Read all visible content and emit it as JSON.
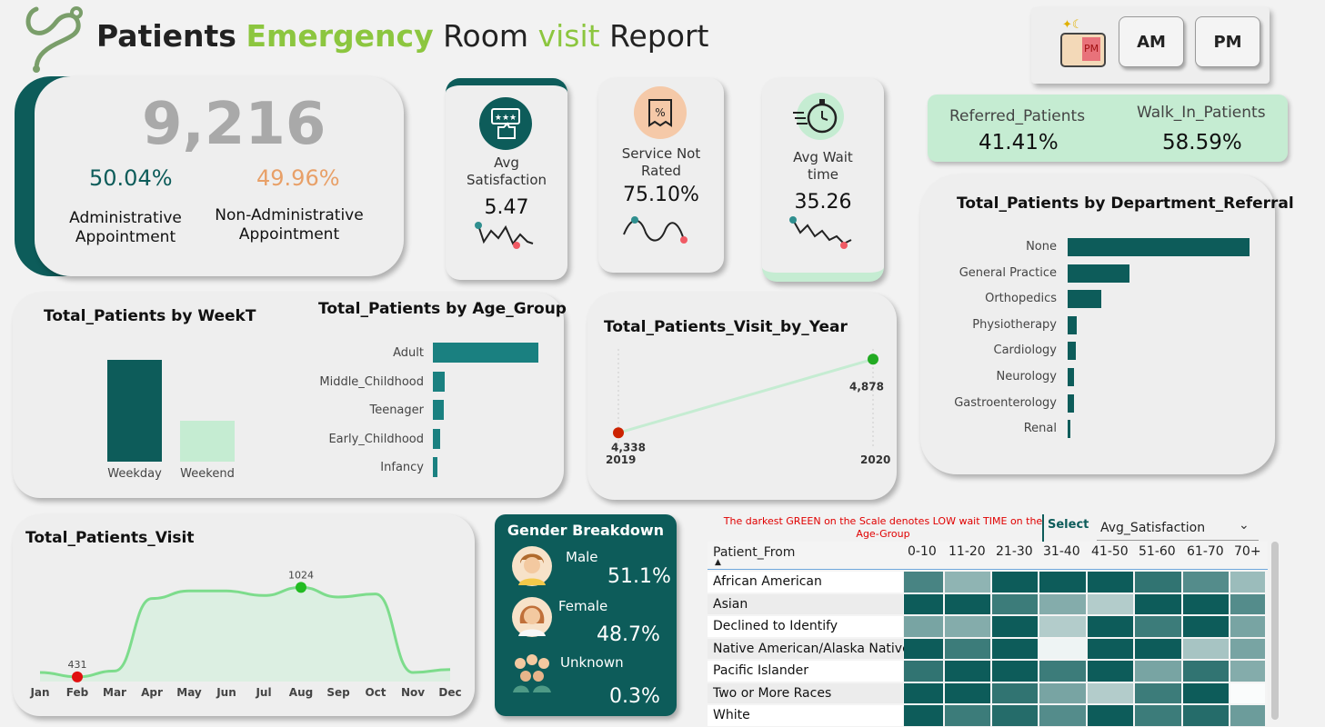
{
  "header": {
    "title_part1": "Patients",
    "title_part2": "Emergency",
    "title_part3": "Room",
    "title_part4": "visit",
    "title_part5": "Report"
  },
  "toggle": {
    "am_label": "AM",
    "pm_label": "PM",
    "indicator_label": "PM"
  },
  "kpi_main": {
    "total": "9,216",
    "admin_pct": "50.04%",
    "nonadmin_pct": "49.96%",
    "admin_label_1": "Administrative",
    "admin_label_2": "Appointment",
    "nonadmin_label_1": "Non-Administrative",
    "nonadmin_label_2": "Appointment"
  },
  "kpi_satisfaction": {
    "label_1": "Avg",
    "label_2": "Satisfaction",
    "value": "5.47"
  },
  "kpi_not_rated": {
    "label_1": "Service Not",
    "label_2": "Rated",
    "value": "75.10%"
  },
  "kpi_wait": {
    "label_1": "Avg Wait",
    "label_2": "time",
    "value": "35.26"
  },
  "referral": {
    "referred_label": "Referred_Patients",
    "referred_value": "41.41%",
    "walkin_label": "Walk_In_Patients",
    "walkin_value": "58.59%"
  },
  "colors": {
    "dark_teal": "#0d5c5a",
    "mid_teal": "#1a8080",
    "light_green": "#c5ecd2",
    "accent_green": "#8cc63f",
    "red_note": "#e00000"
  },
  "chart_data": [
    {
      "id": "department",
      "type": "bar",
      "title": "Total_Patients by Department_Referral",
      "categories": [
        "None",
        "General Practice",
        "Orthopedics",
        "Physiotherapy",
        "Cardiology",
        "Neurology",
        "Gastroenterology",
        "Renal"
      ],
      "values": [
        5400,
        1840,
        995,
        276,
        248,
        193,
        178,
        86
      ]
    },
    {
      "id": "week",
      "type": "bar",
      "title": "Total_Patients by WeekT",
      "categories": [
        "Weekday",
        "Weekend"
      ],
      "values": [
        6560,
        2656
      ]
    },
    {
      "id": "age",
      "type": "bar",
      "title": "Total_Patients by Age_Group",
      "categories": [
        "Adult",
        "Middle_Childhood",
        "Teenager",
        "Early_Childhood",
        "Infancy"
      ],
      "values": [
        5880,
        640,
        600,
        420,
        240
      ]
    },
    {
      "id": "year",
      "type": "line",
      "title": "Total_Patients_Visit_by_Year",
      "x": [
        "2019",
        "2020"
      ],
      "values": [
        4338,
        4878
      ],
      "value_labels": [
        "4,338",
        "4,878"
      ]
    },
    {
      "id": "month",
      "type": "area",
      "title": "Total_Patients_Visit",
      "x": [
        "Jan",
        "Feb",
        "Mar",
        "Apr",
        "May",
        "Jun",
        "Jul",
        "Aug",
        "Sep",
        "Oct",
        "Nov",
        "Dec"
      ],
      "values": [
        460,
        431,
        470,
        950,
        1000,
        1000,
        970,
        1024,
        960,
        980,
        460,
        480
      ],
      "min_label": "431",
      "max_label": "1024"
    }
  ],
  "gender": {
    "title": "Gender Breakdown",
    "male_label": "Male",
    "male_value": "51.1%",
    "female_label": "Female",
    "female_value": "48.7%",
    "unknown_label": "Unknown",
    "unknown_value": "0.3%"
  },
  "heatmap": {
    "note": "The darkest GREEN on the Scale denotes LOW wait TIME on the Age-Group",
    "select_label": "Select",
    "select_value": "Avg_Satisfaction",
    "row_header": "Patient_From",
    "columns": [
      "0-10",
      "11-20",
      "21-30",
      "31-40",
      "41-50",
      "51-60",
      "61-70",
      "70+"
    ],
    "rows": [
      "African American",
      "Asian",
      "Declined to Identify",
      "Native American/Alaska Native",
      "Pacific Islander",
      "Two or More Races",
      "White"
    ],
    "levels": [
      [
        0.75,
        0.45,
        1.0,
        1.0,
        1.0,
        0.85,
        0.7,
        0.4
      ],
      [
        1.0,
        1.0,
        0.8,
        0.5,
        0.3,
        1.0,
        1.0,
        0.7
      ],
      [
        0.55,
        0.5,
        1.0,
        0.3,
        1.0,
        0.8,
        1.0,
        0.55
      ],
      [
        1.0,
        0.8,
        1.0,
        0.05,
        1.0,
        1.0,
        0.35,
        0.55
      ],
      [
        0.85,
        1.0,
        1.0,
        0.8,
        1.0,
        0.55,
        0.85,
        0.5
      ],
      [
        1.0,
        1.0,
        0.85,
        0.55,
        0.3,
        0.8,
        1.0,
        0.0
      ],
      [
        1.0,
        0.8,
        0.9,
        0.7,
        1.0,
        0.8,
        0.9,
        0.6
      ]
    ]
  }
}
